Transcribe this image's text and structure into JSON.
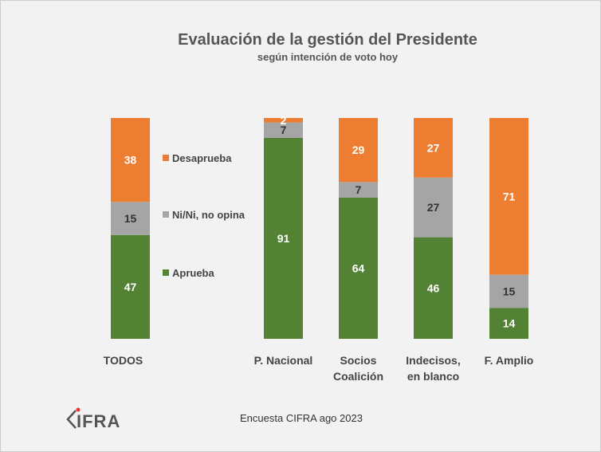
{
  "chart_data": {
    "type": "bar",
    "stacked": true,
    "title": "Evaluación de la gestión del Presidente",
    "subtitle": "según intención de voto hoy",
    "categories": [
      "TODOS",
      "P. Nacional",
      "Socios Coalición",
      "Indecisos, en blanco",
      "F. Amplio"
    ],
    "category_lines": [
      [
        "TODOS"
      ],
      [
        "P. Nacional"
      ],
      [
        "Socios",
        "Coalición"
      ],
      [
        "Indecisos,",
        "en blanco"
      ],
      [
        "F. Amplio"
      ]
    ],
    "series": [
      {
        "name": "Aprueba",
        "color": "#548235",
        "values": [
          47,
          91,
          64,
          46,
          14
        ]
      },
      {
        "name": "Ni/Ni, no opina",
        "color": "#a5a5a5",
        "values": [
          15,
          7,
          7,
          27,
          15
        ]
      },
      {
        "name": "Desaprueba",
        "color": "#ed7d31",
        "values": [
          38,
          2,
          29,
          27,
          71
        ]
      }
    ],
    "ylim": [
      0,
      100
    ],
    "legend": "inline-left",
    "grid": false,
    "source": "Encuesta CIFRA ago 2023"
  },
  "logo": "CIFRA"
}
